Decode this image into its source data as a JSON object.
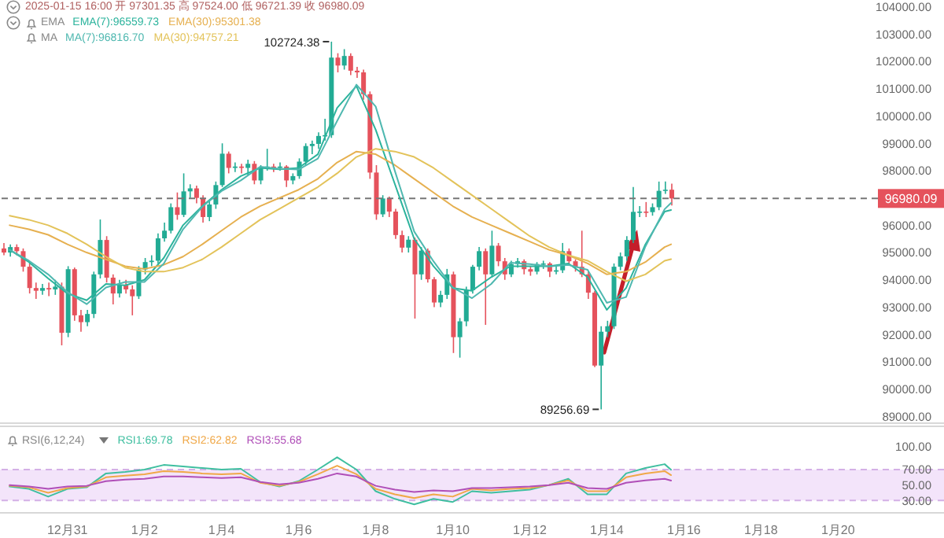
{
  "chart_data": [
    {
      "type": "candlestick",
      "legend": "top left",
      "tick_labels": "y",
      "annotations": [
        "2025-01-15 16:00 开 97301.35 高 97524.00 低 96721.39 收 96980.09",
        "EMA",
        "MA",
        {
          "text": "102724.38",
          "x": "2025-01-06T20:00",
          "y": 102724.38
        },
        {
          "text": "89256.69",
          "x": "2025-01-13T20:00",
          "y": 89256.69
        }
      ],
      "x": [
        "2024-12-29T08:00",
        "2024-12-29T12:00",
        "2024-12-29T16:00",
        "2024-12-29T20:00",
        "2024-12-30T00:00",
        "2024-12-30T04:00",
        "2024-12-30T08:00",
        "2024-12-30T12:00",
        "2024-12-30T16:00",
        "2024-12-30T20:00",
        "2024-12-31T00:00",
        "2024-12-31T04:00",
        "2024-12-31T08:00",
        "2024-12-31T12:00",
        "2024-12-31T16:00",
        "2024-12-31T20:00",
        "2025-01-01T00:00",
        "2025-01-01T04:00",
        "2025-01-01T08:00",
        "2025-01-01T12:00",
        "2025-01-01T16:00",
        "2025-01-01T20:00",
        "2025-01-02T00:00",
        "2025-01-02T04:00",
        "2025-01-02T08:00",
        "2025-01-02T12:00",
        "2025-01-02T16:00",
        "2025-01-02T20:00",
        "2025-01-03T00:00",
        "2025-01-03T04:00",
        "2025-01-03T08:00",
        "2025-01-03T12:00",
        "2025-01-03T16:00",
        "2025-01-03T20:00",
        "2025-01-04T00:00",
        "2025-01-04T04:00",
        "2025-01-04T08:00",
        "2025-01-04T12:00",
        "2025-01-04T16:00",
        "2025-01-04T20:00",
        "2025-01-05T00:00",
        "2025-01-05T04:00",
        "2025-01-05T08:00",
        "2025-01-05T12:00",
        "2025-01-05T16:00",
        "2025-01-05T20:00",
        "2025-01-06T00:00",
        "2025-01-06T04:00",
        "2025-01-06T08:00",
        "2025-01-06T12:00",
        "2025-01-06T16:00",
        "2025-01-06T20:00",
        "2025-01-07T00:00",
        "2025-01-07T04:00",
        "2025-01-07T08:00",
        "2025-01-07T12:00",
        "2025-01-07T16:00",
        "2025-01-07T20:00",
        "2025-01-08T00:00",
        "2025-01-08T04:00",
        "2025-01-08T08:00",
        "2025-01-08T12:00",
        "2025-01-08T16:00",
        "2025-01-08T20:00",
        "2025-01-09T00:00",
        "2025-01-09T04:00",
        "2025-01-09T08:00",
        "2025-01-09T12:00",
        "2025-01-09T16:00",
        "2025-01-09T20:00",
        "2025-01-10T00:00",
        "2025-01-10T04:00",
        "2025-01-10T08:00",
        "2025-01-10T12:00",
        "2025-01-10T16:00",
        "2025-01-10T20:00",
        "2025-01-11T00:00",
        "2025-01-11T04:00",
        "2025-01-11T08:00",
        "2025-01-11T12:00",
        "2025-01-11T16:00",
        "2025-01-11T20:00",
        "2025-01-12T00:00",
        "2025-01-12T04:00",
        "2025-01-12T08:00",
        "2025-01-12T12:00",
        "2025-01-12T16:00",
        "2025-01-12T20:00",
        "2025-01-13T00:00",
        "2025-01-13T04:00",
        "2025-01-13T08:00",
        "2025-01-13T12:00",
        "2025-01-13T16:00",
        "2025-01-13T20:00",
        "2025-01-14T00:00",
        "2025-01-14T04:00",
        "2025-01-14T08:00",
        "2025-01-14T12:00",
        "2025-01-14T16:00",
        "2025-01-14T20:00",
        "2025-01-15T00:00",
        "2025-01-15T04:00",
        "2025-01-15T08:00",
        "2025-01-15T12:00",
        "2025-01-15T16:00"
      ],
      "ohlc": [
        [
          95150,
          95350,
          94900,
          95000
        ],
        [
          95000,
          95300,
          94850,
          95200
        ],
        [
          95200,
          95300,
          94900,
          95050
        ],
        [
          95050,
          95150,
          94300,
          94480
        ],
        [
          94480,
          94600,
          93500,
          93700
        ],
        [
          93700,
          93900,
          93300,
          93600
        ],
        [
          93600,
          93850,
          93450,
          93700
        ],
        [
          93700,
          93900,
          93400,
          93650
        ],
        [
          93650,
          94000,
          93450,
          93750
        ],
        [
          93750,
          93900,
          91600,
          92060
        ],
        [
          92060,
          94500,
          91900,
          94390
        ],
        [
          94390,
          94450,
          92500,
          92700
        ],
        [
          92700,
          92900,
          92100,
          92450
        ],
        [
          92450,
          92900,
          92300,
          92750
        ],
        [
          92750,
          94300,
          92600,
          94200
        ],
        [
          94200,
          96210,
          94050,
          95460
        ],
        [
          95460,
          95600,
          93900,
          94080
        ],
        [
          94080,
          94200,
          93100,
          93500
        ],
        [
          93500,
          94000,
          93350,
          93800
        ],
        [
          93800,
          94000,
          93500,
          93650
        ],
        [
          93650,
          93800,
          92700,
          93400
        ],
        [
          93400,
          94500,
          93300,
          94380
        ],
        [
          94380,
          94800,
          94200,
          94650
        ],
        [
          94650,
          94900,
          94500,
          94700
        ],
        [
          94700,
          95700,
          94600,
          95520
        ],
        [
          95520,
          96100,
          95400,
          95800
        ],
        [
          95800,
          96800,
          95700,
          96660
        ],
        [
          96660,
          97200,
          96200,
          96380
        ],
        [
          96380,
          97900,
          96300,
          97240
        ],
        [
          97240,
          97500,
          97000,
          97350
        ],
        [
          97350,
          97450,
          96800,
          97000
        ],
        [
          97000,
          97100,
          96100,
          96300
        ],
        [
          96300,
          96900,
          96150,
          96760
        ],
        [
          96760,
          97600,
          96600,
          97470
        ],
        [
          97470,
          99000,
          97400,
          98620
        ],
        [
          98620,
          98700,
          97900,
          98100
        ],
        [
          98100,
          98300,
          97950,
          98150
        ],
        [
          98150,
          98250,
          97900,
          98100
        ],
        [
          98100,
          98400,
          97800,
          98250
        ],
        [
          98250,
          98350,
          97500,
          97640
        ],
        [
          97640,
          98200,
          97500,
          98100
        ],
        [
          98100,
          98800,
          98000,
          98150
        ],
        [
          98150,
          98250,
          97950,
          98100
        ],
        [
          98100,
          98300,
          98000,
          98150
        ],
        [
          98150,
          98200,
          97400,
          97640
        ],
        [
          97640,
          97900,
          97500,
          97800
        ],
        [
          97800,
          98450,
          97700,
          98330
        ],
        [
          98330,
          99000,
          98200,
          98900
        ],
        [
          98900,
          99100,
          98600,
          98980
        ],
        [
          98980,
          99400,
          98800,
          99270
        ],
        [
          99270,
          99900,
          99100,
          99300
        ],
        [
          99300,
          102724.38,
          99200,
          102140
        ],
        [
          102140,
          102300,
          101600,
          101850
        ],
        [
          101850,
          102450,
          101700,
          102200
        ],
        [
          102200,
          102300,
          101500,
          101660
        ],
        [
          101660,
          101800,
          101400,
          101600
        ],
        [
          101600,
          101700,
          100600,
          100800
        ],
        [
          100800,
          100900,
          97700,
          97930
        ],
        [
          97930,
          98200,
          96200,
          96400
        ],
        [
          96400,
          97100,
          96300,
          96980
        ],
        [
          96980,
          97050,
          96300,
          96500
        ],
        [
          96500,
          96600,
          95500,
          95640
        ],
        [
          95640,
          95800,
          95000,
          95180
        ],
        [
          95180,
          95600,
          95000,
          95470
        ],
        [
          95470,
          95550,
          92580,
          94200
        ],
        [
          94200,
          95200,
          94000,
          95070
        ],
        [
          95070,
          95150,
          93900,
          94020
        ],
        [
          94020,
          94100,
          93000,
          93170
        ],
        [
          93170,
          93600,
          93000,
          93450
        ],
        [
          93450,
          94400,
          93300,
          94200
        ],
        [
          94200,
          94300,
          91320,
          91900
        ],
        [
          91900,
          92600,
          91150,
          92480
        ],
        [
          92480,
          93750,
          92300,
          93620
        ],
        [
          93620,
          94550,
          93500,
          94480
        ],
        [
          94480,
          95200,
          94350,
          95050
        ],
        [
          95050,
          95150,
          92350,
          94200
        ],
        [
          94200,
          95800,
          94100,
          95250
        ],
        [
          95250,
          95350,
          94500,
          94680
        ],
        [
          94680,
          94800,
          94000,
          94200
        ],
        [
          94200,
          94700,
          94100,
          94580
        ],
        [
          94580,
          94800,
          94450,
          94680
        ],
        [
          94680,
          94750,
          94200,
          94390
        ],
        [
          94390,
          94500,
          94150,
          94300
        ],
        [
          94300,
          94650,
          94200,
          94580
        ],
        [
          94580,
          94700,
          94400,
          94600
        ],
        [
          94600,
          94650,
          94100,
          94300
        ],
        [
          94300,
          94500,
          94200,
          94350
        ],
        [
          94350,
          95350,
          94250,
          95050
        ],
        [
          95050,
          95150,
          94550,
          94680
        ],
        [
          94680,
          94750,
          94300,
          94480
        ],
        [
          94480,
          95800,
          94100,
          94200
        ],
        [
          94200,
          94300,
          93300,
          93530
        ],
        [
          93530,
          93600,
          90800,
          90860
        ],
        [
          90860,
          92300,
          89256.69,
          92100
        ],
        [
          92100,
          92500,
          91900,
          92300
        ],
        [
          92300,
          94600,
          92200,
          94480
        ],
        [
          94480,
          95000,
          94350,
          94860
        ],
        [
          94860,
          95600,
          94700,
          95460
        ],
        [
          95460,
          97400,
          95350,
          96490
        ],
        [
          96490,
          96700,
          96300,
          96500
        ],
        [
          96500,
          96850,
          96300,
          96480
        ],
        [
          96480,
          96800,
          96350,
          96660
        ],
        [
          96660,
          97600,
          96550,
          97260
        ],
        [
          97260,
          97600,
          97150,
          97301.35
        ],
        [
          97301.35,
          97524,
          96721.39,
          96980.09
        ]
      ],
      "series": [
        {
          "type": "line",
          "name": "EMA(7):96559.73",
          "color": "#2bb39c",
          "x": [
            "2024-12-29T12:00",
            "2024-12-30T00:00",
            "2024-12-30T12:00",
            "2024-12-31T00:00",
            "2024-12-31T12:00",
            "2025-01-01T00:00",
            "2025-01-01T12:00",
            "2025-01-02T00:00",
            "2025-01-02T12:00",
            "2025-01-03T00:00",
            "2025-01-03T12:00",
            "2025-01-04T00:00",
            "2025-01-04T12:00",
            "2025-01-05T00:00",
            "2025-01-05T12:00",
            "2025-01-06T00:00",
            "2025-01-06T12:00",
            "2025-01-07T00:00",
            "2025-01-07T12:00",
            "2025-01-08T00:00",
            "2025-01-08T12:00",
            "2025-01-09T00:00",
            "2025-01-09T12:00",
            "2025-01-10T00:00",
            "2025-01-10T12:00",
            "2025-01-11T00:00",
            "2025-01-11T12:00",
            "2025-01-12T00:00",
            "2025-01-12T12:00",
            "2025-01-13T00:00",
            "2025-01-13T12:00",
            "2025-01-14T00:00",
            "2025-01-14T12:00",
            "2025-01-15T00:00",
            "2025-01-15T12:00",
            "2025-01-15T16:00"
          ],
          "values": [
            95100,
            94650,
            94050,
            93500,
            93250,
            93850,
            93800,
            94000,
            94800,
            96000,
            96700,
            97300,
            97800,
            98100,
            98050,
            98100,
            98600,
            100300,
            101100,
            99500,
            97500,
            95500,
            94500,
            93700,
            93600,
            94100,
            94500,
            94500,
            94500,
            94600,
            94100,
            92900,
            93700,
            95300,
            96500,
            96559.73
          ]
        },
        {
          "type": "line",
          "name": "EMA(30):95301.38",
          "color": "#e6b050",
          "x": [
            "2024-12-29T12:00",
            "2024-12-30T00:00",
            "2024-12-30T12:00",
            "2024-12-31T00:00",
            "2024-12-31T12:00",
            "2025-01-01T00:00",
            "2025-01-01T12:00",
            "2025-01-02T00:00",
            "2025-01-02T12:00",
            "2025-01-03T00:00",
            "2025-01-03T12:00",
            "2025-01-04T00:00",
            "2025-01-04T12:00",
            "2025-01-05T00:00",
            "2025-01-05T12:00",
            "2025-01-06T00:00",
            "2025-01-06T12:00",
            "2025-01-07T00:00",
            "2025-01-07T12:00",
            "2025-01-08T00:00",
            "2025-01-08T12:00",
            "2025-01-09T00:00",
            "2025-01-09T12:00",
            "2025-01-10T00:00",
            "2025-01-10T12:00",
            "2025-01-11T00:00",
            "2025-01-11T12:00",
            "2025-01-12T00:00",
            "2025-01-12T12:00",
            "2025-01-13T00:00",
            "2025-01-13T12:00",
            "2025-01-14T00:00",
            "2025-01-14T12:00",
            "2025-01-15T00:00",
            "2025-01-15T12:00",
            "2025-01-15T16:00"
          ],
          "values": [
            96000,
            95850,
            95650,
            95300,
            95000,
            94750,
            94500,
            94400,
            94550,
            94850,
            95300,
            95800,
            96300,
            96700,
            97000,
            97300,
            97700,
            98300,
            98700,
            98600,
            98200,
            97700,
            97200,
            96700,
            96300,
            96000,
            95700,
            95400,
            95100,
            94900,
            94600,
            94200,
            94300,
            94650,
            95200,
            95301.38
          ]
        },
        {
          "type": "line",
          "name": "MA(7):96816.70",
          "color": "#4fb8b0",
          "x": [
            "2024-12-29T12:00",
            "2024-12-30T00:00",
            "2024-12-30T12:00",
            "2024-12-31T00:00",
            "2024-12-31T12:00",
            "2025-01-01T00:00",
            "2025-01-01T12:00",
            "2025-01-02T00:00",
            "2025-01-02T12:00",
            "2025-01-03T00:00",
            "2025-01-03T12:00",
            "2025-01-04T00:00",
            "2025-01-04T12:00",
            "2025-01-05T00:00",
            "2025-01-05T12:00",
            "2025-01-06T00:00",
            "2025-01-06T12:00",
            "2025-01-07T00:00",
            "2025-01-07T12:00",
            "2025-01-08T00:00",
            "2025-01-08T12:00",
            "2025-01-09T00:00",
            "2025-01-09T12:00",
            "2025-01-10T00:00",
            "2025-01-10T12:00",
            "2025-01-11T00:00",
            "2025-01-11T12:00",
            "2025-01-12T00:00",
            "2025-01-12T12:00",
            "2025-01-13T00:00",
            "2025-01-13T12:00",
            "2025-01-14T00:00",
            "2025-01-14T12:00",
            "2025-01-15T00:00",
            "2025-01-15T12:00",
            "2025-01-15T16:00"
          ],
          "values": [
            95100,
            94700,
            94200,
            93550,
            93110,
            93720,
            93920,
            93920,
            94590,
            95850,
            96680,
            97250,
            97640,
            98140,
            98070,
            98040,
            98440,
            99820,
            101150,
            100350,
            97980,
            95770,
            94680,
            93720,
            93330,
            93850,
            94630,
            94580,
            94490,
            94550,
            94370,
            93160,
            93370,
            95220,
            96590,
            96816.7
          ]
        },
        {
          "type": "line",
          "name": "MA(30):94757.21",
          "color": "#e3c35a",
          "x": [
            "2024-12-29T12:00",
            "2024-12-30T00:00",
            "2024-12-30T12:00",
            "2024-12-31T00:00",
            "2024-12-31T12:00",
            "2025-01-01T00:00",
            "2025-01-01T12:00",
            "2025-01-02T00:00",
            "2025-01-02T12:00",
            "2025-01-03T00:00",
            "2025-01-03T12:00",
            "2025-01-04T00:00",
            "2025-01-04T12:00",
            "2025-01-05T00:00",
            "2025-01-05T12:00",
            "2025-01-06T00:00",
            "2025-01-06T12:00",
            "2025-01-07T00:00",
            "2025-01-07T12:00",
            "2025-01-08T00:00",
            "2025-01-08T12:00",
            "2025-01-09T00:00",
            "2025-01-09T12:00",
            "2025-01-10T00:00",
            "2025-01-10T12:00",
            "2025-01-11T00:00",
            "2025-01-11T12:00",
            "2025-01-12T00:00",
            "2025-01-12T12:00",
            "2025-01-13T00:00",
            "2025-01-13T12:00",
            "2025-01-14T00:00",
            "2025-01-14T12:00",
            "2025-01-15T00:00",
            "2025-01-15T12:00",
            "2025-01-15T16:00"
          ],
          "values": [
            96350,
            96200,
            96000,
            95700,
            95300,
            94850,
            94450,
            94300,
            94300,
            94450,
            94750,
            95200,
            95700,
            96200,
            96600,
            97000,
            97400,
            97900,
            98500,
            98800,
            98700,
            98500,
            98100,
            97600,
            97100,
            96600,
            96100,
            95600,
            95200,
            94900,
            94700,
            94300,
            93950,
            94200,
            94700,
            94757.21
          ]
        }
      ],
      "xlim": [
        "2024-12-29T06:00",
        "2025-01-22T18:00"
      ],
      "ylim": [
        88750,
        104250
      ],
      "yticks": [
        {
          "value": 89000,
          "label": "89000.00"
        },
        {
          "value": 90000,
          "label": "90000.00"
        },
        {
          "value": 91000,
          "label": "91000.00"
        },
        {
          "value": 92000,
          "label": "92000.00"
        },
        {
          "value": 93000,
          "label": "93000.00"
        },
        {
          "value": 94000,
          "label": "94000.00"
        },
        {
          "value": 95000,
          "label": "95000.00"
        },
        {
          "value": 96000,
          "label": "96000.00"
        },
        {
          "value": 97000,
          "label": null
        },
        {
          "value": 98000,
          "label": "98000.00"
        },
        {
          "value": 99000,
          "label": "99000.00"
        },
        {
          "value": 100000,
          "label": "100000.00"
        },
        {
          "value": 101000,
          "label": "101000.00"
        },
        {
          "value": 102000,
          "label": "102000.00"
        },
        {
          "value": 103000,
          "label": "103000.00"
        },
        {
          "value": 104000,
          "label": "104000.00"
        }
      ],
      "ref_lines": [
        {
          "axis": "y",
          "value": 96980.09,
          "label": "96980.09",
          "color": "#777777",
          "line_style": "dashed"
        }
      ]
    },
    {
      "type": "line",
      "legend": "top left",
      "annotations": [
        "RSI(6,12,24)"
      ],
      "x": [
        "2024-12-29T12:00",
        "2024-12-30T00:00",
        "2024-12-30T12:00",
        "2024-12-31T00:00",
        "2024-12-31T12:00",
        "2025-01-01T00:00",
        "2025-01-01T12:00",
        "2025-01-02T00:00",
        "2025-01-02T12:00",
        "2025-01-03T00:00",
        "2025-01-03T12:00",
        "2025-01-04T00:00",
        "2025-01-04T12:00",
        "2025-01-05T00:00",
        "2025-01-05T12:00",
        "2025-01-06T00:00",
        "2025-01-06T12:00",
        "2025-01-07T00:00",
        "2025-01-07T12:00",
        "2025-01-08T00:00",
        "2025-01-08T12:00",
        "2025-01-09T00:00",
        "2025-01-09T12:00",
        "2025-01-10T00:00",
        "2025-01-10T12:00",
        "2025-01-11T00:00",
        "2025-01-11T12:00",
        "2025-01-12T00:00",
        "2025-01-12T12:00",
        "2025-01-13T00:00",
        "2025-01-13T12:00",
        "2025-01-14T00:00",
        "2025-01-14T12:00",
        "2025-01-15T00:00",
        "2025-01-15T12:00",
        "2025-01-15T16:00"
      ],
      "series": [
        {
          "name": "RSI1:69.78",
          "color": "#3fbfa0",
          "values": [
            48,
            45,
            35,
            45,
            47,
            65,
            67,
            70,
            76,
            74,
            72,
            70,
            71,
            54,
            48,
            55,
            70,
            86,
            70,
            42,
            32,
            25,
            32,
            28,
            42,
            40,
            42,
            44,
            50,
            58,
            38,
            38,
            65,
            72,
            77,
            69.78
          ]
        },
        {
          "name": "RSI2:62.82",
          "color": "#f0a848",
          "values": [
            49,
            47,
            40,
            46,
            48,
            60,
            62,
            64,
            68,
            67,
            65,
            64,
            65,
            53,
            49,
            54,
            64,
            75,
            64,
            45,
            38,
            33,
            38,
            35,
            45,
            43,
            45,
            46,
            50,
            56,
            42,
            42,
            60,
            65,
            68,
            62.82
          ]
        },
        {
          "name": "RSI3:55.68",
          "color": "#b04fb8",
          "values": [
            50,
            48,
            45,
            48,
            49,
            55,
            57,
            58,
            61,
            61,
            60,
            59,
            60,
            54,
            51,
            53,
            58,
            65,
            61,
            49,
            44,
            41,
            43,
            42,
            46,
            46,
            47,
            48,
            50,
            53,
            46,
            45,
            53,
            56,
            58,
            55.68
          ]
        }
      ],
      "xlim": [
        "2024-12-29T06:00",
        "2025-01-22T18:00"
      ],
      "xticks": [
        {
          "value": "2024-12-31",
          "label": "12月31"
        },
        {
          "value": "2025-01-02",
          "label": "1月2"
        },
        {
          "value": "2025-01-04",
          "label": "1月4"
        },
        {
          "value": "2025-01-06",
          "label": "1月6"
        },
        {
          "value": "2025-01-08",
          "label": "1月8"
        },
        {
          "value": "2025-01-10",
          "label": "1月10"
        },
        {
          "value": "2025-01-12",
          "label": "1月12"
        },
        {
          "value": "2025-01-14",
          "label": "1月14"
        },
        {
          "value": "2025-01-16",
          "label": "1月16"
        },
        {
          "value": "2025-01-18",
          "label": "1月18"
        },
        {
          "value": "2025-01-20",
          "label": "1月20"
        }
      ],
      "ylim": [
        14,
        126
      ],
      "yticks": [
        {
          "value": 30,
          "label": "30.00"
        },
        {
          "value": 50,
          "label": "50.00"
        },
        {
          "value": 70,
          "label": "70.00"
        },
        {
          "value": 100,
          "label": "100.00"
        }
      ],
      "bands": [
        {
          "axis": "y",
          "from": 30,
          "to": 70,
          "color": "#f3e4fa"
        }
      ],
      "ref_lines": [
        {
          "axis": "y",
          "value": 70,
          "color": "#d4b0e6",
          "line_style": "dashed"
        },
        {
          "axis": "y",
          "value": 30,
          "color": "#d4b0e6",
          "line_style": "dashed"
        }
      ]
    }
  ]
}
